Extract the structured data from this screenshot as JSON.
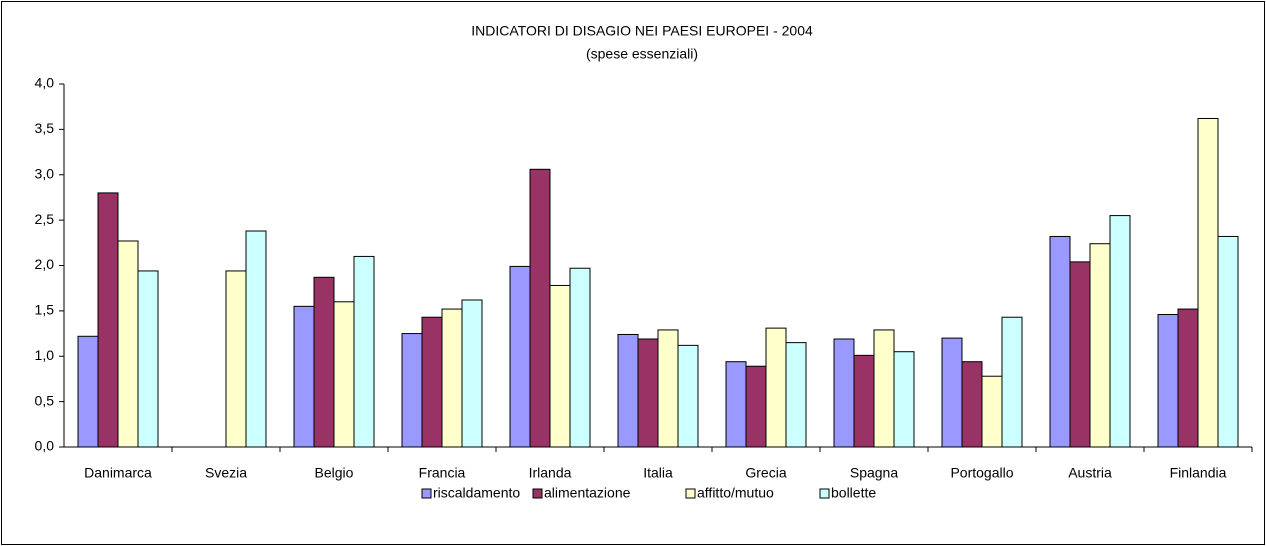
{
  "chart_data": {
    "type": "bar",
    "title": "INDICATORI DI DISAGIO NEI PAESI EUROPEI - 2004",
    "subtitle": "(spese essenziali)",
    "categories": [
      "Danimarca",
      "Svezia",
      "Belgio",
      "Francia",
      "Irlanda",
      "Italia",
      "Grecia",
      "Spagna",
      "Portogallo",
      "Austria",
      "Finlandia"
    ],
    "series": [
      {
        "name": "riscaldamento",
        "color": "#9999ff",
        "values": [
          1.22,
          null,
          1.55,
          1.25,
          1.99,
          1.24,
          0.94,
          1.19,
          1.2,
          2.32,
          1.46
        ]
      },
      {
        "name": "alimentazione",
        "color": "#993366",
        "values": [
          2.8,
          null,
          1.87,
          1.43,
          3.06,
          1.19,
          0.89,
          1.01,
          0.94,
          2.04,
          1.52
        ]
      },
      {
        "name": "affitto/mutuo",
        "color": "#ffffcc",
        "values": [
          2.27,
          1.94,
          1.6,
          1.52,
          1.78,
          1.29,
          1.31,
          1.29,
          0.78,
          2.24,
          3.62
        ]
      },
      {
        "name": "bollette",
        "color": "#ccffff",
        "values": [
          1.94,
          2.38,
          2.1,
          1.62,
          1.97,
          1.12,
          1.15,
          1.05,
          1.43,
          2.55,
          2.32
        ]
      }
    ],
    "ylim": [
      0,
      4
    ],
    "yticks": [
      {
        "value": 0,
        "label": "0,0"
      },
      {
        "value": 0.5,
        "label": "0,5"
      },
      {
        "value": 1,
        "label": "1,0"
      },
      {
        "value": 1.5,
        "label": "1,5"
      },
      {
        "value": 2,
        "label": "2,0"
      },
      {
        "value": 2.5,
        "label": "2,5"
      },
      {
        "value": 3,
        "label": "3,0"
      },
      {
        "value": 3.5,
        "label": "3,5"
      },
      {
        "value": 4,
        "label": "4,0"
      }
    ],
    "legend": "bottom"
  }
}
